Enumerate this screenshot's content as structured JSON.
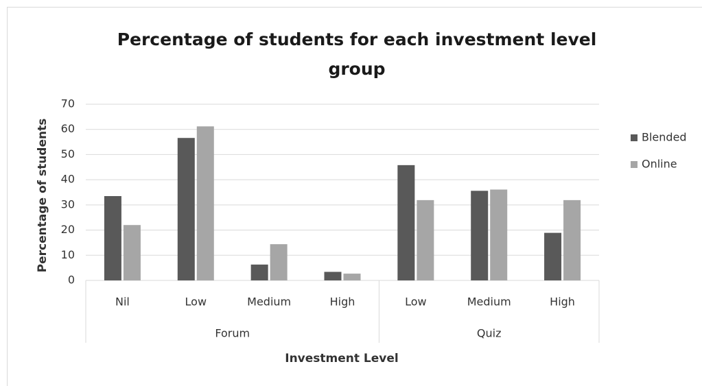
{
  "chart_data": {
    "type": "bar",
    "title": "Percentage of students for each investment level group",
    "x_label": "Investment Level",
    "y_label": "Percentage of students",
    "groups": [
      {
        "name": "Forum",
        "categories": [
          "Nil",
          "Low",
          "Medium",
          "High"
        ]
      },
      {
        "name": "Quiz",
        "categories": [
          "Low",
          "Medium",
          "High"
        ]
      }
    ],
    "series": [
      {
        "name": "Blended",
        "color": "#595959",
        "values": [
          33.5,
          56.6,
          6.3,
          3.4,
          45.8,
          35.6,
          18.9
        ]
      },
      {
        "name": "Online",
        "color": "#a6a6a6",
        "values": [
          22,
          61.2,
          14.4,
          2.7,
          31.9,
          36.1,
          31.9
        ]
      }
    ],
    "ylim": [
      0,
      70
    ],
    "yticks": [
      0,
      10,
      20,
      30,
      40,
      50,
      60,
      70
    ],
    "grid": true,
    "legend": "right"
  }
}
